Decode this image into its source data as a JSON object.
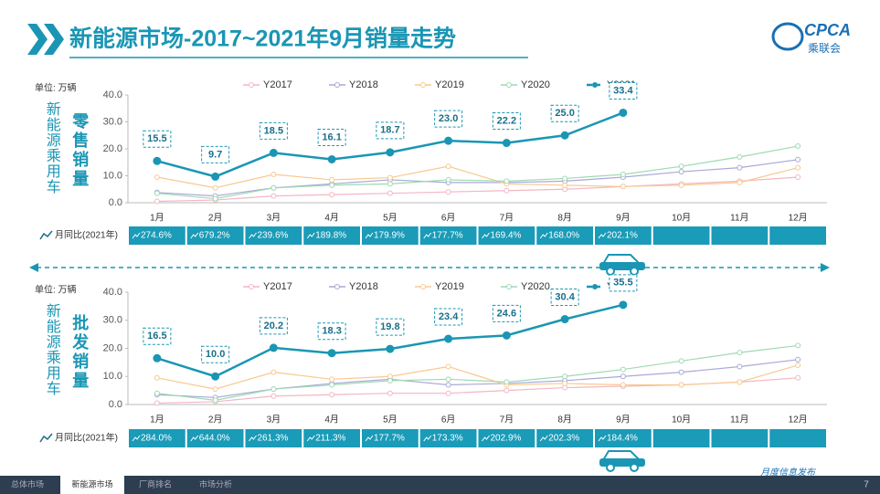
{
  "header": {
    "title": "新能源市场-2017~2021年9月销量走势",
    "logo": "CPCA",
    "logo_sub": "乘联会"
  },
  "footer": {
    "tabs": [
      "总体市场",
      "新能源市场",
      "厂商排名",
      "市场分析"
    ],
    "note": "月度信息发布",
    "page": "7"
  },
  "chart_data": [
    {
      "type": "line",
      "unit": "单位: 万辆",
      "side_label": "新能源乘用车",
      "metric_label": "零售销量",
      "categories": [
        "1月",
        "2月",
        "3月",
        "4月",
        "5月",
        "6月",
        "7月",
        "8月",
        "9月",
        "10月",
        "11月",
        "12月"
      ],
      "ylim": [
        0,
        40
      ],
      "yticks": [
        {
          "value": 0,
          "label": "0.0"
        },
        {
          "value": 10,
          "label": "10.0"
        },
        {
          "value": 20,
          "label": "20.0"
        },
        {
          "value": 30,
          "label": "30.0"
        },
        {
          "value": 40,
          "label": "40.0"
        }
      ],
      "series": [
        {
          "name": "Y2017",
          "color": "#f4b6c2",
          "values": [
            0.5,
            1,
            2.5,
            3,
            3.5,
            4,
            4.5,
            5,
            6,
            7,
            8,
            9.5
          ]
        },
        {
          "name": "Y2018",
          "color": "#a9a9d8",
          "values": [
            3.8,
            2.5,
            5.5,
            7,
            8.5,
            7.5,
            7.5,
            8,
            9.5,
            11.5,
            13,
            16
          ]
        },
        {
          "name": "Y2019",
          "color": "#f9c98f",
          "values": [
            9.5,
            5.5,
            10.5,
            8.5,
            9.3,
            13.5,
            7,
            6.5,
            6,
            6.5,
            7.5,
            13
          ]
        },
        {
          "name": "Y2020",
          "color": "#9fd9b4",
          "values": [
            3.5,
            1.5,
            5.5,
            6.5,
            7,
            8.5,
            8,
            9,
            10.5,
            13.5,
            17,
            21
          ]
        },
        {
          "name": "Y2021",
          "color": "#1a96b4",
          "values": [
            15.5,
            9.7,
            18.5,
            16.1,
            18.7,
            23.0,
            22.2,
            25.0,
            33.4,
            null,
            null,
            null
          ],
          "value_labels": [
            "15.5",
            "9.7",
            "18.5",
            "16.1",
            "18.7",
            "23.0",
            "22.2",
            "25.0",
            "33.4",
            null,
            null,
            null
          ]
        }
      ],
      "yoy": {
        "label": "月同比(2021年)",
        "values": [
          274.6,
          679.2,
          239.6,
          189.8,
          179.9,
          177.7,
          169.4,
          168.0,
          202.1,
          null,
          null,
          null
        ],
        "value_labels": [
          "274.6%",
          "679.2%",
          "239.6%",
          "189.8%",
          "179.9%",
          "177.7%",
          "169.4%",
          "168.0%",
          "202.1%",
          null,
          null,
          null
        ]
      }
    },
    {
      "type": "line",
      "unit": "单位: 万辆",
      "side_label": "新能源乘用车",
      "metric_label": "批发销量",
      "categories": [
        "1月",
        "2月",
        "3月",
        "4月",
        "5月",
        "6月",
        "7月",
        "8月",
        "9月",
        "10月",
        "11月",
        "12月"
      ],
      "ylim": [
        0,
        40
      ],
      "yticks": [
        {
          "value": 0,
          "label": "0.0"
        },
        {
          "value": 10,
          "label": "10.0"
        },
        {
          "value": 20,
          "label": "20.0"
        },
        {
          "value": 30,
          "label": "30.0"
        },
        {
          "value": 40,
          "label": "40.0"
        }
      ],
      "series": [
        {
          "name": "Y2017",
          "color": "#f4b6c2",
          "values": [
            0.5,
            1,
            3,
            3.5,
            4,
            4,
            5,
            6,
            6.5,
            7,
            8,
            9.5
          ]
        },
        {
          "name": "Y2018",
          "color": "#a9a9d8",
          "values": [
            3.5,
            2.5,
            5.5,
            7.5,
            9,
            7,
            7.5,
            8.5,
            10,
            11.5,
            13.5,
            16
          ]
        },
        {
          "name": "Y2019",
          "color": "#f9c98f",
          "values": [
            9.5,
            5.5,
            11.5,
            9,
            10,
            13.5,
            7,
            7.5,
            7,
            7,
            8,
            14
          ]
        },
        {
          "name": "Y2020",
          "color": "#9fd9b4",
          "values": [
            4,
            1.5,
            5.5,
            7,
            8.5,
            9,
            8,
            10,
            12.5,
            15.5,
            18.5,
            21
          ]
        },
        {
          "name": "Y2021",
          "color": "#1a96b4",
          "values": [
            16.5,
            10.0,
            20.2,
            18.3,
            19.8,
            23.4,
            24.6,
            30.4,
            35.5,
            null,
            null,
            null
          ],
          "value_labels": [
            "16.5",
            "10.0",
            "20.2",
            "18.3",
            "19.8",
            "23.4",
            "24.6",
            "30.4",
            "35.5",
            null,
            null,
            null
          ]
        }
      ],
      "yoy": {
        "label": "月同比(2021年)",
        "values": [
          284.0,
          644.0,
          261.3,
          211.3,
          177.7,
          173.3,
          202.9,
          202.3,
          184.4,
          null,
          null,
          null
        ],
        "value_labels": [
          "284.0%",
          "644.0%",
          "261.3%",
          "211.3%",
          "177.7%",
          "173.3%",
          "202.9%",
          "202.3%",
          "184.4%",
          null,
          null,
          null
        ]
      }
    }
  ]
}
